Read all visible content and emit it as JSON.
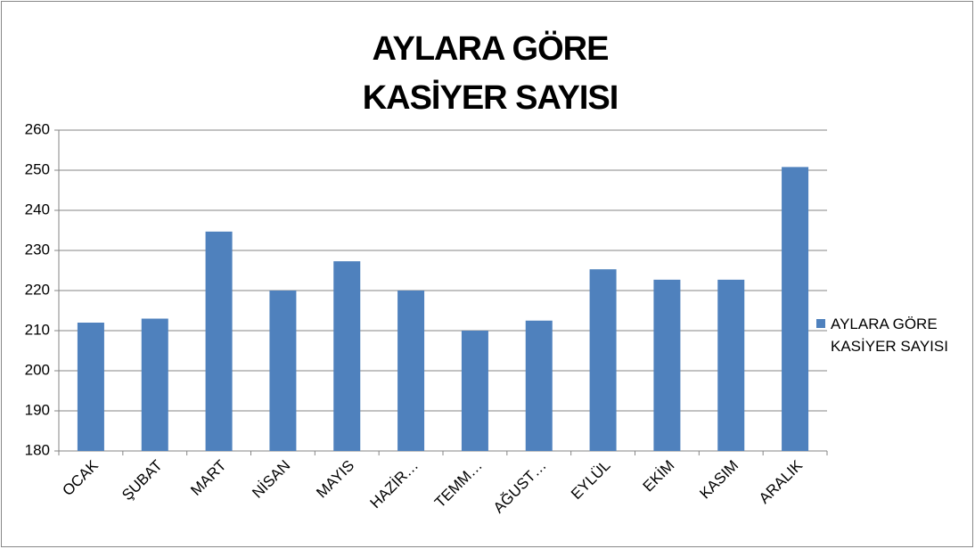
{
  "chart_data": {
    "type": "bar",
    "title": "AYLARA GÖRE KASİYER SAYISI",
    "categories": [
      "OCAK",
      "ŞUBAT",
      "MART",
      "NİSAN",
      "MAYIS",
      "HAZİR…",
      "TEMM…",
      "AĞUST…",
      "EYLÜL",
      "EKİM",
      "KASIM",
      "ARALIK"
    ],
    "series": [
      {
        "name": "AYLARA GÖRE KASİYER SAYISI",
        "color": "#4f81bd",
        "values": [
          212,
          213,
          234.7,
          220,
          227.3,
          220,
          210,
          212.5,
          225.3,
          222.7,
          222.7,
          250.8
        ]
      }
    ],
    "ylim": [
      180,
      260
    ],
    "yticks": [
      180,
      190,
      200,
      210,
      220,
      230,
      240,
      250,
      260
    ],
    "grid": true,
    "legend": "right"
  }
}
